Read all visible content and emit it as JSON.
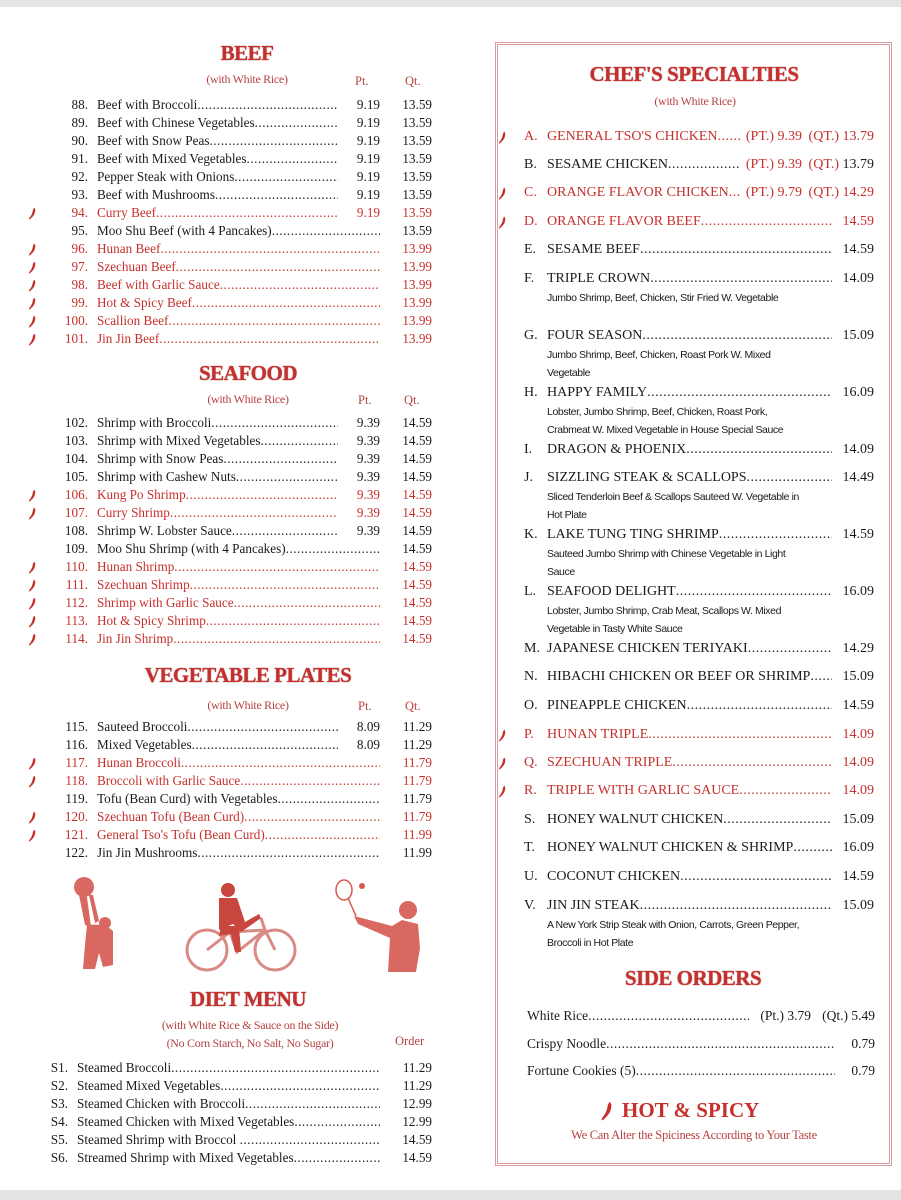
{
  "colors": {
    "accent": "#c6302c",
    "text": "#1a1a1a",
    "border": "#d79b9b"
  },
  "beef": {
    "title": "BEEF",
    "subtitle": "(with White Rice)",
    "pt_label": "Pt.",
    "qt_label": "Qt.",
    "items": [
      {
        "num": "88.",
        "name": "Beef with Broccoli",
        "pt": "9.19",
        "qt": "13.59",
        "spicy": false
      },
      {
        "num": "89.",
        "name": "Beef with Chinese Vegetables",
        "pt": "9.19",
        "qt": "13.59",
        "spicy": false
      },
      {
        "num": "90.",
        "name": "Beef with Snow Peas",
        "pt": "9.19",
        "qt": "13.59",
        "spicy": false
      },
      {
        "num": "91.",
        "name": "Beef with Mixed Vegetables",
        "pt": "9.19",
        "qt": "13.59",
        "spicy": false
      },
      {
        "num": "92.",
        "name": "Pepper Steak with Onions",
        "pt": "9.19",
        "qt": "13.59",
        "spicy": false
      },
      {
        "num": "93.",
        "name": "Beef with Mushrooms",
        "pt": "9.19",
        "qt": "13.59",
        "spicy": false
      },
      {
        "num": "94.",
        "name": "Curry Beef",
        "pt": "9.19",
        "qt": "13.59",
        "spicy": true
      },
      {
        "num": "95.",
        "name": "Moo Shu Beef (with 4 Pancakes)",
        "pt": "",
        "qt": "13.59",
        "spicy": false
      },
      {
        "num": "96.",
        "name": "Hunan Beef",
        "pt": "",
        "qt": "13.99",
        "spicy": true
      },
      {
        "num": "97.",
        "name": "Szechuan Beef",
        "pt": "",
        "qt": "13.99",
        "spicy": true
      },
      {
        "num": "98.",
        "name": "Beef with Garlic Sauce",
        "pt": "",
        "qt": "13.99",
        "spicy": true
      },
      {
        "num": "99.",
        "name": "Hot & Spicy Beef",
        "pt": "",
        "qt": "13.99",
        "spicy": true
      },
      {
        "num": "100.",
        "name": "Scallion Beef",
        "pt": "",
        "qt": "13.99",
        "spicy": true
      },
      {
        "num": "101.",
        "name": "Jin Jin Beef",
        "pt": "",
        "qt": "13.99",
        "spicy": true
      }
    ]
  },
  "seafood": {
    "title": "SEAFOOD",
    "subtitle": "(with White Rice)",
    "pt_label": "Pt.",
    "qt_label": "Qt.",
    "items": [
      {
        "num": "102.",
        "name": "Shrimp with Broccoli",
        "pt": "9.39",
        "qt": "14.59",
        "spicy": false
      },
      {
        "num": "103.",
        "name": "Shrimp with Mixed Vegetables",
        "pt": "9.39",
        "qt": "14.59",
        "spicy": false
      },
      {
        "num": "104.",
        "name": "Shrimp with Snow Peas",
        "pt": "9.39",
        "qt": "14.59",
        "spicy": false
      },
      {
        "num": "105.",
        "name": "Shrimp with Cashew Nuts",
        "pt": "9.39",
        "qt": "14.59",
        "spicy": false
      },
      {
        "num": "106.",
        "name": "Kung Po Shrimp",
        "pt": "9.39",
        "qt": "14.59",
        "spicy": true
      },
      {
        "num": "107.",
        "name": "Curry Shrimp",
        "pt": "9.39",
        "qt": "14.59",
        "spicy": true
      },
      {
        "num": "108.",
        "name": "Shrimp W. Lobster Sauce",
        "pt": "9.39",
        "qt": "14.59",
        "spicy": false
      },
      {
        "num": "109.",
        "name": "Moo Shu Shrimp (with 4 Pancakes)",
        "pt": "",
        "qt": "14.59",
        "spicy": false
      },
      {
        "num": "110.",
        "name": "Hunan Shrimp",
        "pt": "",
        "qt": "14.59",
        "spicy": true
      },
      {
        "num": "111.",
        "name": "Szechuan Shrimp",
        "pt": "",
        "qt": "14.59",
        "spicy": true
      },
      {
        "num": "112.",
        "name": "Shrimp with Garlic Sauce",
        "pt": "",
        "qt": "14.59",
        "spicy": true
      },
      {
        "num": "113.",
        "name": "Hot & Spicy Shrimp",
        "pt": "",
        "qt": "14.59",
        "spicy": true
      },
      {
        "num": "114.",
        "name": "Jin Jin Shrimp",
        "pt": "",
        "qt": "14.59",
        "spicy": true
      }
    ]
  },
  "vegetable": {
    "title": "VEGETABLE PLATES",
    "subtitle": "(with White Rice)",
    "pt_label": "Pt.",
    "qt_label": "Qt.",
    "items": [
      {
        "num": "115.",
        "name": "Sauteed Broccoli",
        "pt": "8.09",
        "qt": "11.29",
        "spicy": false
      },
      {
        "num": "116.",
        "name": "Mixed Vegetables",
        "pt": "8.09",
        "qt": "11.29",
        "spicy": false
      },
      {
        "num": "117.",
        "name": "Hunan Broccoli",
        "pt": "",
        "qt": "11.79",
        "spicy": true
      },
      {
        "num": "118.",
        "name": "Broccoli with Garlic Sauce",
        "pt": "",
        "qt": "11.79",
        "spicy": true
      },
      {
        "num": "119.",
        "name": "Tofu (Bean Curd) with Vegetables",
        "pt": "",
        "qt": "11.79",
        "spicy": false
      },
      {
        "num": "120.",
        "name": "Szechuan Tofu (Bean Curd)",
        "pt": "",
        "qt": "11.79",
        "spicy": true
      },
      {
        "num": "121.",
        "name": "General Tso's Tofu (Bean Curd)",
        "pt": "",
        "qt": "11.99",
        "spicy": true
      },
      {
        "num": "122.",
        "name": "Jin Jin Mushrooms",
        "pt": "",
        "qt": "11.99",
        "spicy": false
      }
    ]
  },
  "diet": {
    "title": "DIET MENU",
    "subtitle1": "(with White Rice & Sauce  on the Side)",
    "subtitle2": "(No Corn Starch, No Salt, No Sugar)",
    "order_label": "Order",
    "items": [
      {
        "num": "S1.",
        "name": "Steamed Broccoli",
        "pt": "",
        "qt": "11.29",
        "spicy": false
      },
      {
        "num": "S2.",
        "name": "Steamed Mixed Vegetables",
        "pt": "",
        "qt": "11.29",
        "spicy": false
      },
      {
        "num": "S3.",
        "name": "Steamed Chicken with Broccoli",
        "pt": "",
        "qt": "12.99",
        "spicy": false
      },
      {
        "num": "S4.",
        "name": "Steamed Chicken with Mixed Vegetables",
        "pt": "",
        "qt": "12.99",
        "spicy": false
      },
      {
        "num": "S5.",
        "name": "Steamed Shrimp with Broccol ",
        "pt": "",
        "qt": "14.59",
        "spicy": false
      },
      {
        "num": "S6.",
        "name": "Streamed Shrimp with Mixed Vegetables",
        "pt": "",
        "qt": "14.59",
        "spicy": false
      }
    ]
  },
  "chef": {
    "title": "CHEF'S SPECIALTIES",
    "subtitle": "(with White Rice)",
    "items": [
      {
        "letter": "A.",
        "name": "GENERAL TSO'S CHICKEN",
        "pt": "(PT.) 9.39",
        "qt_label": "(QT.)",
        "qt": "13.79",
        "price": "",
        "desc": [],
        "spicy": true
      },
      {
        "letter": "B.",
        "name": "SESAME CHICKEN",
        "pt": "(PT.) 9.39",
        "qt_label": "(QT.)",
        "qt": "13.79",
        "price": "",
        "desc": [],
        "spicy": false
      },
      {
        "letter": "C.",
        "name": "ORANGE FLAVOR CHICKEN",
        "pt": "(PT.) 9.79",
        "qt_label": "(QT.)",
        "qt": "14.29",
        "price": "",
        "desc": [],
        "spicy": true
      },
      {
        "letter": "D.",
        "name": "ORANGE FLAVOR BEEF",
        "price": "14.59",
        "desc": [],
        "spicy": true
      },
      {
        "letter": "E.",
        "name": "SESAME BEEF",
        "price": "14.59",
        "desc": [],
        "spicy": false
      },
      {
        "letter": "F.",
        "name": "TRIPLE CROWN",
        "price": "14.09",
        "desc": [
          "Jumbo Shrimp, Beef, Chicken, Stir Fried W. Vegetable"
        ],
        "spicy": false
      },
      {
        "letter": "G.",
        "name": "FOUR SEASON",
        "price": "15.09",
        "desc": [
          "Jumbo Shrimp, Beef, Chicken, Roast Pork W. Mixed",
          "Vegetable"
        ],
        "spicy": false
      },
      {
        "letter": "H.",
        "name": "HAPPY FAMILY",
        "price": "16.09",
        "desc": [
          "Lobster, Jumbo Shrimp, Beef, Chicken, Roast Pork,",
          "Crabmeat W. Mixed Vegetable in House Special Sauce"
        ],
        "spicy": false
      },
      {
        "letter": "I.",
        "name": "DRAGON & PHOENIX",
        "price": "14.09",
        "desc": [],
        "spicy": false
      },
      {
        "letter": "J.",
        "name": "SIZZLING STEAK & SCALLOPS",
        "price": "14.49",
        "desc": [
          "Sliced Tenderloin Beef & Scallops Sauteed W. Vegetable in",
          "Hot Plate"
        ],
        "spicy": false
      },
      {
        "letter": "K.",
        "name": "LAKE TUNG TING SHRIMP",
        "price": "14.59",
        "desc": [
          "Sauteed Jumbo Shrimp with Chinese Vegetable in Light",
          "Sauce"
        ],
        "spicy": false
      },
      {
        "letter": "L.",
        "name": "SEAFOOD DELIGHT",
        "price": "16.09",
        "desc": [
          "Lobster, Jumbo Shrimp, Crab Meat, Scallops W. Mixed",
          "Vegetable in Tasty White Sauce"
        ],
        "spicy": false
      },
      {
        "letter": "M.",
        "name": "JAPANESE CHICKEN TERIYAKI",
        "price": "14.29",
        "desc": [],
        "spicy": false
      },
      {
        "letter": "N.",
        "name": "HIBACHI CHICKEN OR BEEF OR SHRIMP",
        "price": "15.09",
        "desc": [],
        "spicy": false
      },
      {
        "letter": "O.",
        "name": "PINEAPPLE CHICKEN",
        "price": "14.59",
        "desc": [],
        "spicy": false
      },
      {
        "letter": "P.",
        "name": "HUNAN TRIPLE",
        "price": "14.09",
        "desc": [],
        "spicy": true
      },
      {
        "letter": "Q.",
        "name": "SZECHUAN TRIPLE",
        "price": "14.09",
        "desc": [],
        "spicy": true
      },
      {
        "letter": "R.",
        "name": "TRIPLE WITH GARLIC SAUCE",
        "price": "14.09",
        "desc": [],
        "spicy": true
      },
      {
        "letter": "S.",
        "name": "HONEY WALNUT CHICKEN",
        "price": "15.09",
        "desc": [],
        "spicy": false
      },
      {
        "letter": "T.",
        "name": "HONEY WALNUT CHICKEN & SHRIMP",
        "price": "16.09",
        "desc": [],
        "spicy": false
      },
      {
        "letter": "U.",
        "name": "COCONUT CHICKEN",
        "price": "14.59",
        "desc": [],
        "spicy": false
      },
      {
        "letter": "V.",
        "name": "JIN JIN STEAK",
        "price": "15.09",
        "desc": [
          "A New York Strip Steak with Onion, Carrots, Green Pepper,",
          "Broccoli in Hot Plate"
        ],
        "spicy": false
      }
    ]
  },
  "side": {
    "title": "SIDE ORDERS",
    "items": [
      {
        "name": "White Rice",
        "pt": "(Pt.) 3.79",
        "qt": "(Qt.) 5.49",
        "price": ""
      },
      {
        "name": "Crispy Noodle",
        "pt": "",
        "qt": "",
        "price": "0.79"
      },
      {
        "name": "Fortune Cookies (5)",
        "pt": "",
        "qt": "",
        "price": "0.79"
      }
    ]
  },
  "legend": {
    "title": "HOT & SPICY",
    "note": "We Can Alter the Spiciness According to Your Taste",
    "icon": "chili-pepper-icon"
  }
}
